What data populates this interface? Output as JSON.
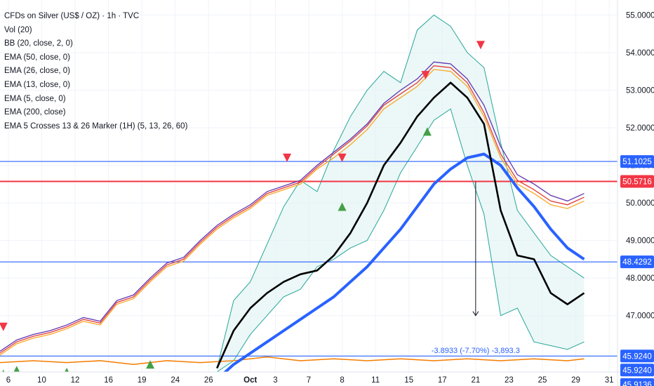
{
  "header": {
    "title": "CFDs on Silver (US$ / OZ) · 1h · TVC"
  },
  "indicators": [
    "Vol (20)",
    "BB (20, close, 2, 0)",
    "EMA (50, close, 0)",
    "EMA (26, close, 0)",
    "EMA (13, close, 0)",
    "EMA (5, close, 0)",
    "EMA (200, close)",
    "EMA 5 Crosses 13 & 26 Marker (1H) (5, 13, 26, 60)"
  ],
  "measure_label": "-3.8933 (-7.70%) -3,893.3",
  "colors": {
    "ema5": "#e53935",
    "ema13": "#f9a825",
    "ema26": "#5e35b1",
    "ema50": "#000000",
    "ema200": "#2962ff",
    "bb": "#26a69a",
    "bb_fill": "#e0f2f1",
    "volume": "#f57c00",
    "red_level": "#f23645",
    "blue_level": "#2962ff",
    "marker_up": "#43a047",
    "marker_down": "#f23645"
  },
  "chart_data": {
    "type": "line",
    "ylim": [
      45.5,
      55.4
    ],
    "x_axis": {
      "tick_labels": [
        "6",
        "10",
        "12",
        "16",
        "19",
        "24",
        "26",
        "Oct",
        "3",
        "7",
        "8",
        "11",
        "15",
        "17",
        "21",
        "23",
        "25",
        "29",
        "31"
      ],
      "tick_positions": [
        0.5,
        2.5,
        4.5,
        6.5,
        8.5,
        10.5,
        12.5,
        15.0,
        16.5,
        18.5,
        20.5,
        22.5,
        24.5,
        26.5,
        28.5,
        30.5,
        32.5,
        34.5,
        36.5
      ],
      "range": [
        0,
        37
      ]
    },
    "y_axis": {
      "ticks": [
        47,
        48,
        49,
        50,
        51,
        52,
        53,
        54,
        55
      ],
      "tick_labels": [
        "47.0000",
        "48.0000",
        "49.0000",
        "50.0000",
        "51.0000",
        "52.0000",
        "53.0000",
        "54.0000",
        "55.0000"
      ]
    },
    "price_labels": [
      {
        "value": 51.1025,
        "label": "51.1025",
        "color": "#2962ff"
      },
      {
        "value": 50.5716,
        "label": "50.5716",
        "color": "#f23645"
      },
      {
        "value": 48.4292,
        "label": "48.4292",
        "color": "#2962ff"
      },
      {
        "value": 45.924,
        "label": "45.9240",
        "color": "#2962ff"
      },
      {
        "value": 45.924,
        "label": "45.9240",
        "color": "#2962ff"
      },
      {
        "value": 45.9136,
        "label": "45.9136",
        "color": "#2962ff"
      }
    ],
    "horizontal_lines": [
      {
        "y": 51.1025,
        "color": "#2962ff"
      },
      {
        "y": 50.5716,
        "color": "#f23645"
      },
      {
        "y": 48.4292,
        "color": "#2962ff"
      },
      {
        "y": 45.924,
        "color": "#2962ff"
      }
    ],
    "series": [
      {
        "key": "ema26",
        "x": [
          0,
          1,
          2,
          3,
          4,
          5,
          6,
          7,
          8,
          9,
          10,
          11,
          12,
          13,
          14,
          15,
          16,
          17,
          18,
          19,
          20,
          21,
          22,
          23,
          24,
          25,
          26,
          27,
          28,
          29,
          30,
          31,
          32,
          33,
          34,
          35
        ],
        "y": [
          46.05,
          46.35,
          46.5,
          46.6,
          46.75,
          46.95,
          46.85,
          47.4,
          47.55,
          48.0,
          48.4,
          48.55,
          49.0,
          49.4,
          49.7,
          49.95,
          50.3,
          50.45,
          50.6,
          51.0,
          51.35,
          51.7,
          52.1,
          52.65,
          53.0,
          53.3,
          53.75,
          53.7,
          53.3,
          52.6,
          51.5,
          50.75,
          50.5,
          50.2,
          50.05,
          50.25
        ]
      },
      {
        "key": "ema5",
        "x": [
          0,
          1,
          2,
          3,
          4,
          5,
          6,
          7,
          8,
          9,
          10,
          11,
          12,
          13,
          14,
          15,
          16,
          17,
          18,
          19,
          20,
          21,
          22,
          23,
          24,
          25,
          26,
          27,
          28,
          29,
          30,
          31,
          32,
          33,
          34,
          35
        ],
        "y": [
          46.0,
          46.3,
          46.45,
          46.55,
          46.7,
          46.9,
          46.8,
          47.35,
          47.5,
          47.95,
          48.35,
          48.5,
          48.95,
          49.35,
          49.65,
          49.9,
          50.25,
          50.4,
          50.55,
          50.95,
          51.3,
          51.65,
          52.05,
          52.6,
          52.9,
          53.2,
          53.65,
          53.6,
          53.2,
          52.4,
          51.3,
          50.6,
          50.35,
          50.05,
          49.95,
          50.15
        ]
      },
      {
        "key": "ema13",
        "x": [
          0,
          1,
          2,
          3,
          4,
          5,
          6,
          7,
          8,
          9,
          10,
          11,
          12,
          13,
          14,
          15,
          16,
          17,
          18,
          19,
          20,
          21,
          22,
          23,
          24,
          25,
          26,
          27,
          28,
          29,
          30,
          31,
          32,
          33,
          34,
          35
        ],
        "y": [
          45.95,
          46.25,
          46.4,
          46.5,
          46.65,
          46.85,
          46.75,
          47.3,
          47.45,
          47.9,
          48.3,
          48.45,
          48.9,
          49.3,
          49.6,
          49.85,
          50.2,
          50.35,
          50.5,
          50.9,
          51.2,
          51.55,
          51.95,
          52.5,
          52.8,
          53.1,
          53.55,
          53.5,
          53.1,
          52.3,
          51.2,
          50.5,
          50.25,
          49.95,
          49.85,
          50.05
        ]
      },
      {
        "key": "bb_upper",
        "x": [
          13,
          14,
          15,
          16,
          17,
          18,
          19,
          20,
          21,
          22,
          23,
          24,
          25,
          26,
          27,
          28,
          29,
          30,
          31,
          32,
          33,
          34,
          35
        ],
        "y": [
          45.6,
          47.4,
          47.9,
          48.9,
          49.9,
          50.6,
          50.3,
          51.4,
          52.3,
          53.0,
          53.5,
          53.2,
          54.6,
          55.0,
          54.7,
          54.0,
          53.6,
          51.6,
          49.8,
          49.2,
          48.6,
          48.3,
          48.0
        ]
      },
      {
        "key": "bb_lower",
        "x": [
          13,
          14,
          15,
          16,
          17,
          18,
          19,
          20,
          21,
          22,
          23,
          24,
          25,
          26,
          27,
          28,
          29,
          30,
          31,
          32,
          33,
          34,
          35
        ],
        "y": [
          45.5,
          45.8,
          46.5,
          47.0,
          47.5,
          47.7,
          48.3,
          48.5,
          48.8,
          49.0,
          49.8,
          50.8,
          51.5,
          52.2,
          52.5,
          51.0,
          49.7,
          47.0,
          47.2,
          46.3,
          46.2,
          46.1,
          46.3
        ]
      },
      {
        "key": "ema50",
        "x": [
          13,
          14,
          15,
          16,
          17,
          18,
          19,
          20,
          21,
          22,
          23,
          24,
          25,
          26,
          27,
          28,
          29,
          30,
          31,
          32,
          33,
          34,
          35
        ],
        "y": [
          45.6,
          46.6,
          47.2,
          47.6,
          47.9,
          48.1,
          48.2,
          48.6,
          49.2,
          50.0,
          51.0,
          51.6,
          52.3,
          52.8,
          53.2,
          52.8,
          52.1,
          49.8,
          48.6,
          48.5,
          47.6,
          47.3,
          47.6
        ]
      },
      {
        "key": "ema200",
        "x": [
          13,
          14,
          15,
          16,
          17,
          18,
          19,
          20,
          21,
          22,
          23,
          24,
          25,
          26,
          27,
          28,
          29,
          30,
          31,
          32,
          33,
          34,
          35
        ],
        "y": [
          45.3,
          45.7,
          46.0,
          46.3,
          46.6,
          46.9,
          47.2,
          47.5,
          47.9,
          48.3,
          48.8,
          49.3,
          49.9,
          50.5,
          50.9,
          51.2,
          51.3,
          51.0,
          50.4,
          49.9,
          49.3,
          48.8,
          48.5
        ]
      },
      {
        "key": "volume",
        "x": [
          0,
          2,
          4,
          6,
          8,
          10,
          12,
          14,
          16,
          18,
          20,
          22,
          24,
          26,
          28,
          30,
          32,
          34,
          35
        ],
        "y": [
          45.75,
          45.8,
          45.75,
          45.8,
          45.7,
          45.8,
          45.75,
          45.8,
          45.9,
          45.8,
          45.85,
          45.8,
          45.85,
          45.8,
          45.85,
          45.8,
          45.85,
          45.8,
          45.85
        ]
      }
    ],
    "markers": [
      {
        "x": 0.2,
        "y": 46.7,
        "dir": "down"
      },
      {
        "x": 20.5,
        "y": 51.2,
        "dir": "down"
      },
      {
        "x": 25.5,
        "y": 53.4,
        "dir": "down"
      },
      {
        "x": 28.8,
        "y": 54.2,
        "dir": "down"
      },
      {
        "x": 17.2,
        "y": 51.2,
        "dir": "down"
      },
      {
        "x": 0.2,
        "y": 45.45,
        "dir": "up"
      },
      {
        "x": 1.0,
        "y": 45.55,
        "dir": "up"
      },
      {
        "x": 4.0,
        "y": 45.5,
        "dir": "up"
      },
      {
        "x": 9.0,
        "y": 45.7,
        "dir": "up"
      },
      {
        "x": 20.5,
        "y": 49.9,
        "dir": "up"
      },
      {
        "x": 25.6,
        "y": 51.9,
        "dir": "up"
      }
    ]
  }
}
